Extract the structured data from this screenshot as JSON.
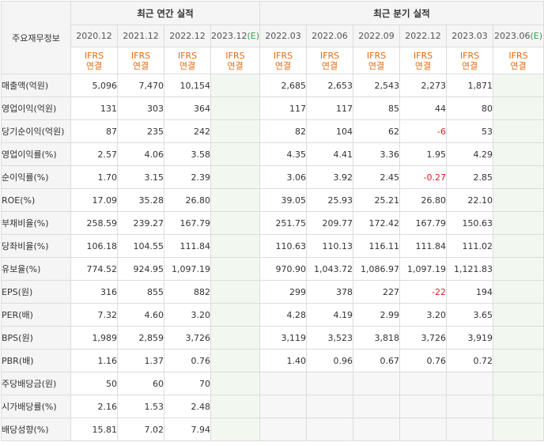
{
  "header": {
    "item_label": "주요재무정보",
    "annual_group": "최근 연간 실적",
    "quarterly_group": "최근 분기 실적",
    "periods": [
      {
        "label": "2020.12",
        "estimate": false
      },
      {
        "label": "2021.12",
        "estimate": false
      },
      {
        "label": "2022.12",
        "estimate": false
      },
      {
        "label": "2023.12",
        "estimate": true
      },
      {
        "label": "2022.03",
        "estimate": false
      },
      {
        "label": "2022.06",
        "estimate": false
      },
      {
        "label": "2022.09",
        "estimate": false
      },
      {
        "label": "2022.12",
        "estimate": false
      },
      {
        "label": "2023.03",
        "estimate": false
      },
      {
        "label": "2023.06",
        "estimate": true
      }
    ],
    "estimate_mark": "(E)",
    "basis_line1": "IFRS",
    "basis_line2": "연결"
  },
  "rows": [
    {
      "label": "매출액(억원)",
      "values": [
        "5,096",
        "7,470",
        "10,154",
        "",
        "2,685",
        "2,653",
        "2,543",
        "2,273",
        "1,871",
        ""
      ]
    },
    {
      "label": "영업이익(억원)",
      "values": [
        "131",
        "303",
        "364",
        "",
        "117",
        "117",
        "85",
        "44",
        "80",
        ""
      ]
    },
    {
      "label": "당기순이익(억원)",
      "values": [
        "87",
        "235",
        "242",
        "",
        "82",
        "104",
        "62",
        "-6",
        "53",
        ""
      ]
    },
    {
      "label": "영업이익률(%)",
      "values": [
        "2.57",
        "4.06",
        "3.58",
        "",
        "4.35",
        "4.41",
        "3.36",
        "1.95",
        "4.29",
        ""
      ]
    },
    {
      "label": "순이익률(%)",
      "values": [
        "1.70",
        "3.15",
        "2.39",
        "",
        "3.06",
        "3.92",
        "2.45",
        "-0.27",
        "2.85",
        ""
      ]
    },
    {
      "label": "ROE(%)",
      "values": [
        "17.09",
        "35.28",
        "26.80",
        "",
        "39.05",
        "25.93",
        "25.21",
        "26.80",
        "22.10",
        ""
      ]
    },
    {
      "label": "부채비율(%)",
      "values": [
        "258.59",
        "239.27",
        "167.79",
        "",
        "251.75",
        "209.77",
        "172.42",
        "167.79",
        "150.63",
        ""
      ]
    },
    {
      "label": "당좌비율(%)",
      "values": [
        "106.18",
        "104.55",
        "111.84",
        "",
        "110.63",
        "110.13",
        "116.11",
        "111.84",
        "111.02",
        ""
      ]
    },
    {
      "label": "유보율(%)",
      "values": [
        "774.52",
        "924.95",
        "1,097.19",
        "",
        "970.90",
        "1,043.72",
        "1,086.97",
        "1,097.19",
        "1,121.83",
        ""
      ]
    },
    {
      "label": "EPS(원)",
      "values": [
        "316",
        "855",
        "882",
        "",
        "299",
        "378",
        "227",
        "-22",
        "194",
        ""
      ]
    },
    {
      "label": "PER(배)",
      "values": [
        "7.32",
        "4.60",
        "3.20",
        "",
        "4.28",
        "4.19",
        "2.99",
        "3.20",
        "3.65",
        ""
      ]
    },
    {
      "label": "BPS(원)",
      "values": [
        "1,989",
        "2,859",
        "3,726",
        "",
        "3,119",
        "3,523",
        "3,818",
        "3,726",
        "3,919",
        ""
      ]
    },
    {
      "label": "PBR(배)",
      "values": [
        "1.16",
        "1.37",
        "0.76",
        "",
        "1.40",
        "0.96",
        "0.67",
        "0.76",
        "0.72",
        ""
      ]
    },
    {
      "label": "주당배당금(원)",
      "values": [
        "50",
        "60",
        "70",
        "",
        "",
        "",
        "",
        "",
        "",
        ""
      ]
    },
    {
      "label": "시가배당률(%)",
      "values": [
        "2.16",
        "1.53",
        "2.48",
        "",
        "",
        "",
        "",
        "",
        "",
        ""
      ]
    },
    {
      "label": "배당성향(%)",
      "values": [
        "15.81",
        "7.02",
        "7.94",
        "",
        "",
        "",
        "",
        "",
        "",
        ""
      ]
    }
  ],
  "colors": {
    "basis_text": "#e56a10",
    "estimate_text": "#3aa24b",
    "negative_value": "#e02020",
    "estimate_bg": "#f2f8f0",
    "header_bg": "#f5f5f5"
  }
}
